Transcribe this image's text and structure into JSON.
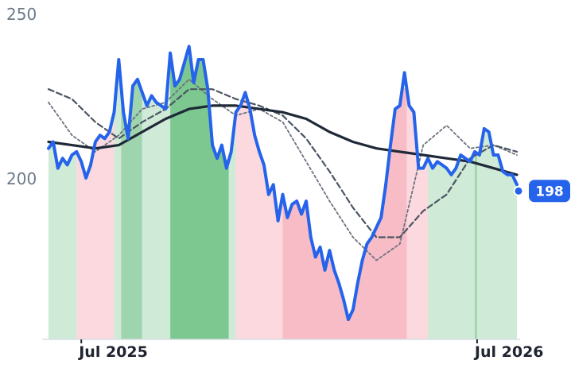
{
  "chart_data": {
    "type": "line",
    "ylim": [
      150,
      250
    ],
    "y_ticks": [
      "250",
      "200"
    ],
    "x_ticks": [
      {
        "label": "Jul 2025",
        "pos": 0.07
      },
      {
        "label": "Jul 2026",
        "pos": 0.915
      }
    ],
    "last_value": "198",
    "colors": {
      "price": "#2563eb",
      "ma_long": "#1f2937",
      "ma_mid": "#4b5563",
      "ma_short": "#6b7280",
      "badge": "#2563eb"
    },
    "regime_bands": [
      {
        "from": 0.0,
        "to": 0.06,
        "regime": "up_weak"
      },
      {
        "from": 0.06,
        "to": 0.14,
        "regime": "down_weak"
      },
      {
        "from": 0.14,
        "to": 0.155,
        "regime": "up_weak"
      },
      {
        "from": 0.155,
        "to": 0.2,
        "regime": "up_mid"
      },
      {
        "from": 0.2,
        "to": 0.26,
        "regime": "up_weak"
      },
      {
        "from": 0.26,
        "to": 0.385,
        "regime": "up_strong"
      },
      {
        "from": 0.385,
        "to": 0.4,
        "regime": "up_weak"
      },
      {
        "from": 0.4,
        "to": 0.5,
        "regime": "down_weak"
      },
      {
        "from": 0.5,
        "to": 0.765,
        "regime": "down_mid"
      },
      {
        "from": 0.765,
        "to": 0.81,
        "regime": "down_weak"
      },
      {
        "from": 0.81,
        "to": 0.91,
        "regime": "up_weak"
      },
      {
        "from": 0.91,
        "to": 0.915,
        "regime": "up_mid"
      },
      {
        "from": 0.915,
        "to": 1.0,
        "regime": "up_weak"
      }
    ],
    "series": [
      {
        "key": "price",
        "x": [
          0,
          0.01,
          0.02,
          0.03,
          0.04,
          0.05,
          0.06,
          0.07,
          0.08,
          0.09,
          0.1,
          0.11,
          0.12,
          0.13,
          0.14,
          0.15,
          0.16,
          0.17,
          0.18,
          0.19,
          0.2,
          0.21,
          0.22,
          0.23,
          0.24,
          0.25,
          0.26,
          0.27,
          0.28,
          0.29,
          0.3,
          0.31,
          0.32,
          0.33,
          0.34,
          0.35,
          0.36,
          0.37,
          0.38,
          0.39,
          0.4,
          0.41,
          0.42,
          0.43,
          0.44,
          0.45,
          0.46,
          0.47,
          0.48,
          0.49,
          0.5,
          0.51,
          0.52,
          0.53,
          0.54,
          0.55,
          0.56,
          0.57,
          0.58,
          0.59,
          0.6,
          0.61,
          0.62,
          0.63,
          0.64,
          0.65,
          0.66,
          0.67,
          0.68,
          0.69,
          0.7,
          0.71,
          0.72,
          0.73,
          0.74,
          0.75,
          0.76,
          0.77,
          0.78,
          0.79,
          0.8,
          0.81,
          0.82,
          0.83,
          0.84,
          0.85,
          0.86,
          0.87,
          0.88,
          0.89,
          0.9,
          0.91,
          0.92,
          0.93,
          0.94,
          0.95,
          0.96,
          0.97,
          0.98,
          0.99,
          1.0
        ],
        "values": [
          209,
          211,
          203,
          206,
          204,
          207,
          208,
          205,
          200,
          204,
          211,
          213,
          212,
          214,
          220,
          236,
          220,
          212,
          228,
          230,
          226,
          222,
          225,
          223,
          222,
          221,
          238,
          228,
          230,
          235,
          240,
          229,
          236,
          236,
          227,
          210,
          206,
          210,
          203,
          208,
          220,
          222,
          226,
          221,
          213,
          208,
          204,
          195,
          198,
          187,
          195,
          188,
          192,
          193,
          189,
          193,
          182,
          176,
          179,
          172,
          178,
          172,
          168,
          163,
          157,
          160,
          168,
          175,
          180,
          182,
          185,
          188,
          198,
          210,
          221,
          222,
          232,
          222,
          220,
          203,
          203,
          206,
          203,
          205,
          204,
          203,
          201,
          203,
          207,
          206,
          205,
          208,
          207,
          215,
          214,
          207,
          207,
          202,
          201,
          201,
          198
        ]
      },
      {
        "key": "ma_long",
        "x": [
          0,
          0.05,
          0.1,
          0.15,
          0.2,
          0.25,
          0.3,
          0.35,
          0.4,
          0.45,
          0.5,
          0.55,
          0.6,
          0.65,
          0.7,
          0.75,
          0.8,
          0.85,
          0.9,
          0.95,
          1.0
        ],
        "values": [
          211,
          210,
          209,
          210,
          214,
          218,
          221,
          222,
          222,
          221,
          220,
          218,
          214,
          211,
          209,
          208,
          207,
          206,
          205,
          203,
          201
        ]
      },
      {
        "key": "ma_mid",
        "x": [
          0,
          0.05,
          0.1,
          0.15,
          0.2,
          0.25,
          0.3,
          0.35,
          0.4,
          0.45,
          0.5,
          0.55,
          0.6,
          0.65,
          0.7,
          0.75,
          0.8,
          0.85,
          0.9,
          0.95,
          1.0
        ],
        "values": [
          227,
          224,
          217,
          212,
          217,
          221,
          227,
          227,
          224,
          222,
          219,
          212,
          202,
          191,
          182,
          182,
          190,
          195,
          206,
          210,
          208
        ]
      },
      {
        "key": "ma_short",
        "x": [
          0,
          0.05,
          0.1,
          0.15,
          0.2,
          0.25,
          0.3,
          0.35,
          0.4,
          0.45,
          0.5,
          0.55,
          0.6,
          0.65,
          0.7,
          0.75,
          0.8,
          0.85,
          0.9,
          0.95,
          1.0
        ],
        "values": [
          223,
          213,
          208,
          213,
          221,
          223,
          230,
          224,
          219,
          221,
          217,
          205,
          193,
          182,
          175,
          180,
          210,
          216,
          209,
          210,
          207
        ]
      }
    ]
  }
}
